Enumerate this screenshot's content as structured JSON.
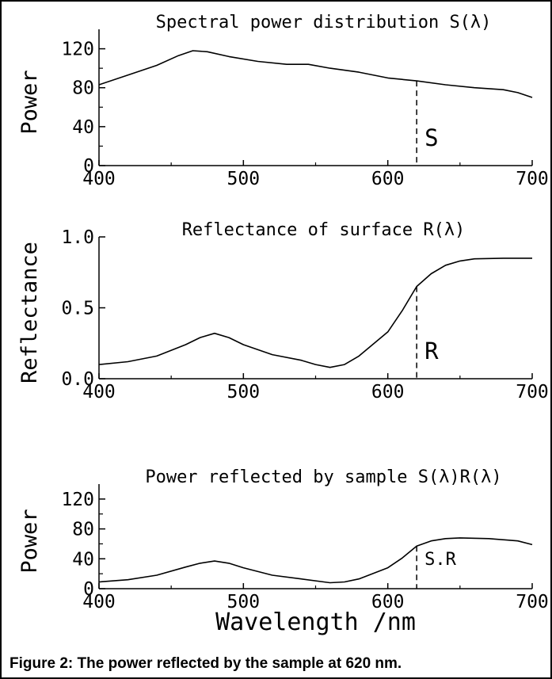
{
  "caption": "Figure 2: The power reflected by the sample at 620 nm.",
  "chart_data": [
    {
      "type": "line",
      "title": "Spectral power distribution S(λ)",
      "xlabel": "",
      "ylabel": "Power",
      "xlim": [
        400,
        700
      ],
      "ylim": [
        0,
        140
      ],
      "xticks": [
        400,
        500,
        600,
        700
      ],
      "yticks": [
        0,
        40,
        80,
        120
      ],
      "grid": false,
      "marker": {
        "x": 620,
        "label": "S"
      },
      "x": [
        400,
        420,
        440,
        455,
        465,
        475,
        490,
        510,
        530,
        545,
        560,
        580,
        600,
        620,
        640,
        660,
        680,
        690,
        700
      ],
      "values": [
        83,
        93,
        103,
        113,
        118,
        117,
        112,
        107,
        104,
        104,
        100,
        96,
        90,
        87,
        83,
        80,
        78,
        75,
        70
      ]
    },
    {
      "type": "line",
      "title": "Reflectance of surface R(λ)",
      "xlabel": "",
      "ylabel": "Reflectance",
      "xlim": [
        400,
        700
      ],
      "ylim": [
        0,
        1.0
      ],
      "xticks": [
        400,
        500,
        600,
        700
      ],
      "yticks": [
        0.0,
        0.5,
        1.0
      ],
      "ytick_labels": [
        "0.0",
        "0.5",
        "1.0"
      ],
      "grid": false,
      "marker": {
        "x": 620,
        "label": "R"
      },
      "x": [
        400,
        420,
        440,
        460,
        470,
        480,
        490,
        500,
        520,
        540,
        550,
        560,
        570,
        580,
        600,
        610,
        620,
        630,
        640,
        650,
        660,
        680,
        700
      ],
      "values": [
        0.1,
        0.12,
        0.16,
        0.24,
        0.29,
        0.32,
        0.29,
        0.24,
        0.17,
        0.13,
        0.1,
        0.08,
        0.1,
        0.16,
        0.33,
        0.48,
        0.65,
        0.74,
        0.8,
        0.83,
        0.845,
        0.85,
        0.85
      ]
    },
    {
      "type": "line",
      "title": "Power reflected by sample S(λ)R(λ)",
      "xlabel": "Wavelength /nm",
      "ylabel": "Power",
      "xlim": [
        400,
        700
      ],
      "ylim": [
        0,
        140
      ],
      "xticks": [
        400,
        500,
        600,
        700
      ],
      "yticks": [
        0,
        40,
        80,
        120
      ],
      "grid": false,
      "marker": {
        "x": 620,
        "label": "S.R"
      },
      "x": [
        400,
        420,
        440,
        460,
        470,
        480,
        490,
        500,
        520,
        540,
        560,
        570,
        580,
        600,
        610,
        620,
        630,
        640,
        650,
        670,
        690,
        700
      ],
      "values": [
        9,
        12,
        18,
        29,
        34,
        37,
        34,
        28,
        18,
        13,
        8,
        9,
        13,
        28,
        41,
        57,
        64,
        67,
        68,
        67,
        64,
        59
      ]
    }
  ]
}
